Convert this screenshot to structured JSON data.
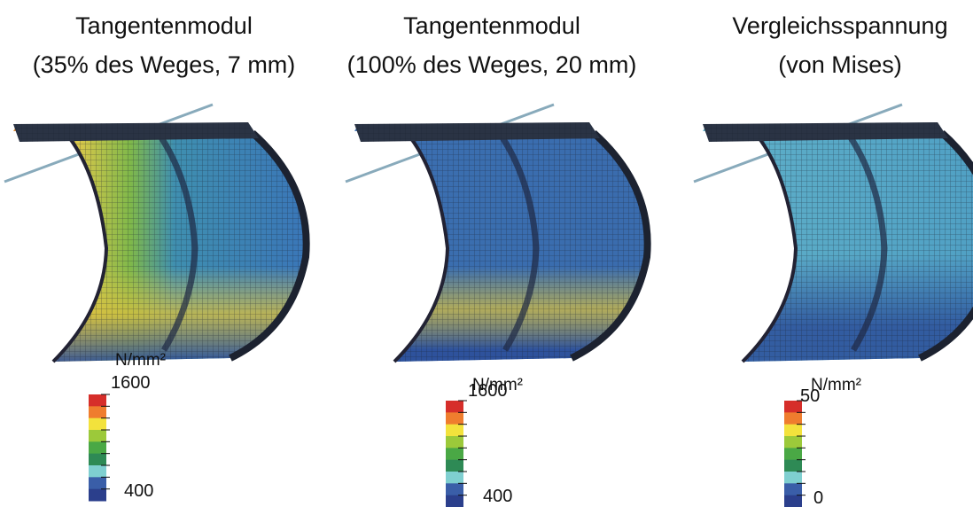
{
  "panels": [
    {
      "title": [
        "Tangentenmodul",
        "(35% des Weges, 7 mm)"
      ],
      "unit": "N/mm²",
      "scale_max": 1600,
      "scale_min": 400
    },
    {
      "title": [
        "Tangentenmodul",
        "(100% des Weges, 20 mm)"
      ],
      "unit": "N/mm²",
      "scale_max": 1600,
      "scale_min": 400
    },
    {
      "title": [
        "Vergleichsspannung",
        "(von Mises)"
      ],
      "unit": "N/mm²",
      "scale_max": 50,
      "scale_min": 0
    }
  ]
}
